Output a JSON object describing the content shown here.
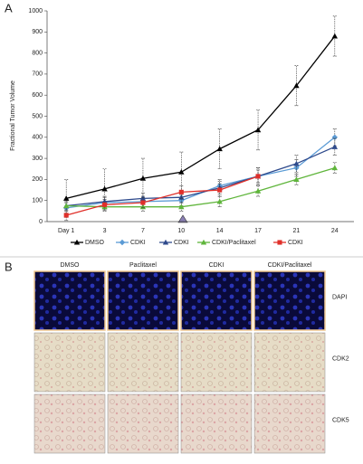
{
  "panel_labels": [
    "A",
    "B"
  ],
  "chart_data": {
    "type": "line",
    "y_label": "Fractional Tumor Volume",
    "categories": [
      "Day 1",
      "3",
      "7",
      "10",
      "14",
      "17",
      "21",
      "24"
    ],
    "series": [
      {
        "name": "DMSO",
        "color": "#000000",
        "marker": "triangle",
        "values": [
          110,
          155,
          205,
          235,
          345,
          435,
          645,
          880
        ],
        "errors": [
          90,
          95,
          95,
          95,
          95,
          95,
          95,
          95
        ]
      },
      {
        "name": "CDKI",
        "color": "#5b9bd5",
        "marker": "diamond",
        "values": [
          65,
          90,
          95,
          100,
          170,
          215,
          255,
          400
        ],
        "errors": [
          25,
          25,
          25,
          25,
          30,
          40,
          40,
          40
        ]
      },
      {
        "name": "CDKI",
        "color": "#2e4a8c",
        "marker": "triangle",
        "values": [
          75,
          95,
          110,
          115,
          160,
          215,
          275,
          355
        ],
        "errors": [
          25,
          25,
          25,
          25,
          30,
          40,
          40,
          40
        ]
      },
      {
        "name": "CDKI/Paclitaxel",
        "color": "#5fb53b",
        "marker": "triangle",
        "values": [
          75,
          70,
          70,
          70,
          95,
          145,
          200,
          255
        ],
        "errors": [
          20,
          20,
          20,
          20,
          25,
          25,
          25,
          25
        ]
      },
      {
        "name": "CDKI",
        "color": "#e0302a",
        "marker": "square",
        "values": [
          30,
          80,
          90,
          140,
          150,
          215,
          null,
          null
        ],
        "errors": [
          25,
          25,
          25,
          30,
          30,
          30,
          null,
          null
        ]
      }
    ],
    "ylim": [
      0,
      1000
    ],
    "yticks": [
      0,
      100,
      200,
      300,
      400,
      500,
      600,
      700,
      800,
      900,
      1000
    ]
  },
  "image_grid": {
    "columns": [
      "DMSO",
      "Paclitaxel",
      "CDKI",
      "CDKI/Paclitaxel"
    ],
    "rows": [
      "DAPI",
      "CDK2",
      "CDK5"
    ]
  }
}
